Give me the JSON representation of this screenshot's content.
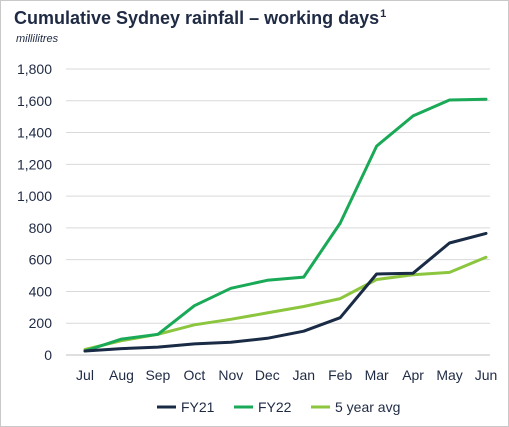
{
  "chart_data": {
    "type": "line",
    "title": "Cumulative Sydney rainfall – working days",
    "title_footnote": "1",
    "units": "millilitres",
    "xlabel": "",
    "ylabel": "",
    "categories": [
      "Jul",
      "Aug",
      "Sep",
      "Oct",
      "Nov",
      "Dec",
      "Jan",
      "Feb",
      "Mar",
      "Apr",
      "May",
      "Jun"
    ],
    "ylim": [
      0,
      1800
    ],
    "yticks": [
      0,
      200,
      400,
      600,
      800,
      1000,
      1200,
      1400,
      1600,
      1800
    ],
    "ytick_labels": [
      "0",
      "200",
      "400",
      "600",
      "800",
      "1,000",
      "1,200",
      "1,400",
      "1,600",
      "1,800"
    ],
    "grid": "horizontal",
    "legend_position": "bottom",
    "series": [
      {
        "name": "FY21",
        "color": "#1a2b45",
        "values": [
          25,
          40,
          50,
          70,
          80,
          105,
          150,
          235,
          510,
          515,
          705,
          765
        ]
      },
      {
        "name": "FY22",
        "color": "#1aa957",
        "values": [
          25,
          100,
          130,
          310,
          420,
          470,
          490,
          830,
          1315,
          1505,
          1605,
          1610
        ]
      },
      {
        "name": "5 year avg",
        "color": "#8cc63f",
        "values": [
          35,
          90,
          130,
          190,
          225,
          265,
          305,
          355,
          475,
          505,
          520,
          615
        ]
      }
    ]
  }
}
